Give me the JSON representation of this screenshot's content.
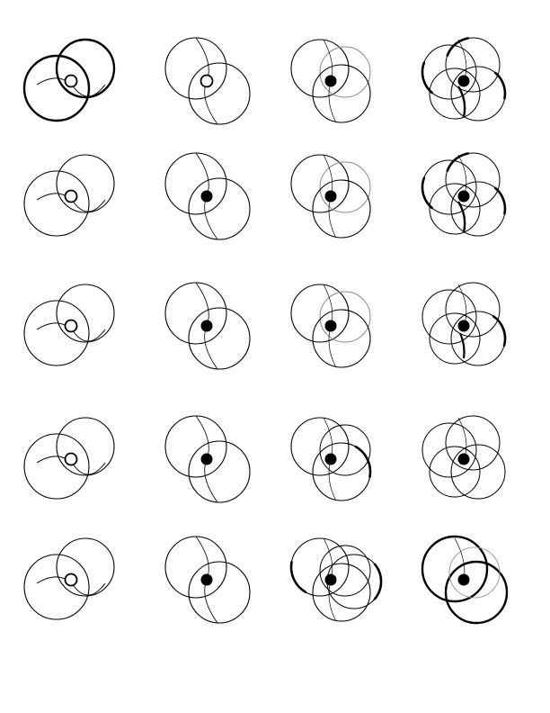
{
  "colors": {
    "background": "#ffffff",
    "ink": "#000000",
    "faint": "#8a8a8a"
  },
  "grid": {
    "rows": 5,
    "columns": 4
  },
  "figures": [
    {
      "id": "r1c1",
      "pattern": "two-overlapping-circles",
      "center_dot": "hollow",
      "bold_arcs": "full-outline"
    },
    {
      "id": "r1c2",
      "pattern": "two-diagonal-circles",
      "center_dot": "hollow",
      "bold_arcs": "none"
    },
    {
      "id": "r1c3",
      "pattern": "three-circle-cluster",
      "center_dot": "filled",
      "bold_arcs": "none"
    },
    {
      "id": "r1c4",
      "pattern": "four-circle-cluster",
      "center_dot": "filled",
      "bold_arcs": "several"
    },
    {
      "id": "r2c1",
      "pattern": "two-overlapping-circles",
      "center_dot": "hollow",
      "bold_arcs": "none"
    },
    {
      "id": "r2c2",
      "pattern": "two-diagonal-circles",
      "center_dot": "filled",
      "bold_arcs": "none"
    },
    {
      "id": "r2c3",
      "pattern": "three-circle-cluster",
      "center_dot": "filled",
      "bold_arcs": "none"
    },
    {
      "id": "r2c4",
      "pattern": "four-circle-cluster",
      "center_dot": "filled",
      "bold_arcs": "several"
    },
    {
      "id": "r3c1",
      "pattern": "two-overlapping-circles",
      "center_dot": "hollow",
      "bold_arcs": "none"
    },
    {
      "id": "r3c2",
      "pattern": "two-diagonal-circles",
      "center_dot": "filled",
      "bold_arcs": "none"
    },
    {
      "id": "r3c3",
      "pattern": "three-circle-cluster",
      "center_dot": "filled",
      "bold_arcs": "none"
    },
    {
      "id": "r3c4",
      "pattern": "four-circle-cluster",
      "center_dot": "filled",
      "bold_arcs": "one"
    },
    {
      "id": "r4c1",
      "pattern": "two-overlapping-circles",
      "center_dot": "hollow",
      "bold_arcs": "none"
    },
    {
      "id": "r4c2",
      "pattern": "two-diagonal-circles",
      "center_dot": "filled",
      "bold_arcs": "none"
    },
    {
      "id": "r4c3",
      "pattern": "three-circle-cluster",
      "center_dot": "filled",
      "bold_arcs": "one"
    },
    {
      "id": "r4c4",
      "pattern": "four-circle-cluster",
      "center_dot": "filled",
      "bold_arcs": "none"
    },
    {
      "id": "r5c1",
      "pattern": "two-overlapping-circles",
      "center_dot": "hollow",
      "bold_arcs": "none"
    },
    {
      "id": "r5c2",
      "pattern": "two-diagonal-circles",
      "center_dot": "filled",
      "bold_arcs": "none"
    },
    {
      "id": "r5c3",
      "pattern": "three-circle-cluster-wide",
      "center_dot": "filled",
      "bold_arcs": "two"
    },
    {
      "id": "r5c4",
      "pattern": "two-circles-bold",
      "center_dot": "filled",
      "bold_arcs": "full-outline"
    }
  ]
}
